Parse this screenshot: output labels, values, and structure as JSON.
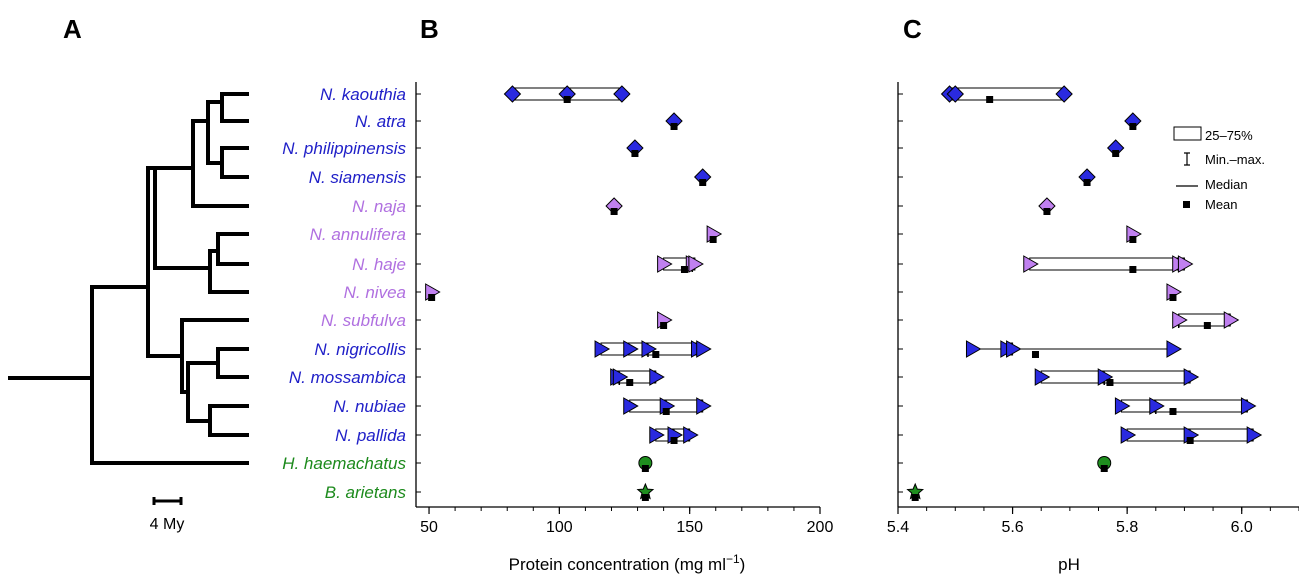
{
  "panels": {
    "A": "A",
    "B": "B",
    "C": "C"
  },
  "tree": {
    "scale_label": "4 My"
  },
  "legend": {
    "box": "25–75%",
    "whisker": "Min.–max.",
    "median": "Median",
    "mean": "Mean"
  },
  "colors": {
    "blue_group": "#2020c8",
    "lavender_group": "#b070e0",
    "green_group": "#1c8a1c",
    "blue_marker": "#2a2ae0",
    "lavender_marker": "#c080f0",
    "green_marker": "#1f8f1f"
  },
  "species": [
    {
      "name": "N. kaouthia",
      "group": "blue",
      "marker": "diamond"
    },
    {
      "name": "N. atra",
      "group": "blue",
      "marker": "diamond"
    },
    {
      "name": "N. philippinensis",
      "group": "blue",
      "marker": "diamond"
    },
    {
      "name": "N. siamensis",
      "group": "blue",
      "marker": "diamond"
    },
    {
      "name": "N. naja",
      "group": "lavender",
      "marker": "diamond"
    },
    {
      "name": "N. annulifera",
      "group": "lavender",
      "marker": "triangle-right"
    },
    {
      "name": "N. haje",
      "group": "lavender",
      "marker": "triangle-right"
    },
    {
      "name": "N. nivea",
      "group": "lavender",
      "marker": "triangle-right"
    },
    {
      "name": "N. subfulva",
      "group": "lavender",
      "marker": "triangle-right"
    },
    {
      "name": "N. nigricollis",
      "group": "blue",
      "marker": "triangle-right"
    },
    {
      "name": "N. mossambica",
      "group": "blue",
      "marker": "triangle-right"
    },
    {
      "name": "N. nubiae",
      "group": "blue",
      "marker": "triangle-right"
    },
    {
      "name": "N. pallida",
      "group": "blue",
      "marker": "triangle-right"
    },
    {
      "name": "H. haemachatus",
      "group": "green",
      "marker": "circle"
    },
    {
      "name": "B. arietans",
      "group": "green",
      "marker": "star"
    }
  ],
  "chart_data": [
    {
      "type": "box",
      "panel": "B",
      "xlabel": "Protein concentration (mg ml−1)",
      "xlim": [
        45,
        200
      ],
      "xticks": [
        50,
        100,
        150,
        200
      ],
      "rows": [
        {
          "points": [
            82,
            103,
            124
          ],
          "box": [
            82,
            124
          ],
          "median": 103,
          "mean": 103
        },
        {
          "points": [
            144
          ],
          "box": null,
          "median": 144,
          "mean": 144
        },
        {
          "points": [
            129
          ],
          "box": null,
          "median": 129,
          "mean": 129
        },
        {
          "points": [
            155
          ],
          "box": null,
          "median": 155,
          "mean": 155
        },
        {
          "points": [
            121
          ],
          "box": null,
          "median": 121,
          "mean": 121
        },
        {
          "points": [
            159
          ],
          "box": null,
          "median": 159,
          "mean": 159
        },
        {
          "points": [
            140,
            151,
            152
          ],
          "box": [
            140,
            152
          ],
          "median": 151,
          "mean": 148
        },
        {
          "points": [
            51
          ],
          "box": null,
          "median": 51,
          "mean": 51
        },
        {
          "points": [
            140
          ],
          "box": null,
          "median": 140,
          "mean": 140
        },
        {
          "points": [
            116,
            127,
            134,
            153,
            155
          ],
          "box": [
            116,
            154
          ],
          "median": 134,
          "mean": 137
        },
        {
          "points": [
            122,
            123,
            137
          ],
          "box": [
            122,
            137
          ],
          "median": 123,
          "mean": 127
        },
        {
          "points": [
            127,
            141,
            155
          ],
          "box": [
            127,
            155
          ],
          "median": 141,
          "mean": 141
        },
        {
          "points": [
            137,
            144,
            150
          ],
          "box": [
            137,
            150
          ],
          "median": 144,
          "mean": 144
        },
        {
          "points": [
            133
          ],
          "box": null,
          "median": 133,
          "mean": 133
        },
        {
          "points": [
            133
          ],
          "box": null,
          "median": 133,
          "mean": 133
        }
      ]
    },
    {
      "type": "box",
      "panel": "C",
      "xlabel": "pH",
      "xlim": [
        5.4,
        6.1
      ],
      "xticks": [
        5.4,
        5.6,
        5.8,
        6.0
      ],
      "xtick_labels": [
        "5.4",
        "5.6",
        "5.8",
        "6.0"
      ],
      "rows": [
        {
          "points": [
            5.49,
            5.5,
            5.69
          ],
          "box": [
            5.49,
            5.69
          ],
          "median": 5.5,
          "mean": 5.56
        },
        {
          "points": [
            5.81
          ],
          "box": null,
          "median": 5.81,
          "mean": 5.81
        },
        {
          "points": [
            5.78
          ],
          "box": null,
          "median": 5.78,
          "mean": 5.78
        },
        {
          "points": [
            5.73
          ],
          "box": null,
          "median": 5.73,
          "mean": 5.73
        },
        {
          "points": [
            5.66
          ],
          "box": null,
          "median": 5.66,
          "mean": 5.66
        },
        {
          "points": [
            5.81
          ],
          "box": null,
          "median": 5.81,
          "mean": 5.81
        },
        {
          "points": [
            5.63,
            5.89,
            5.9
          ],
          "box": [
            5.63,
            5.9
          ],
          "median": 5.89,
          "mean": 5.81
        },
        {
          "points": [
            5.88
          ],
          "box": null,
          "median": 5.88,
          "mean": 5.88
        },
        {
          "points": [
            5.89,
            5.98
          ],
          "box": [
            5.89,
            5.98
          ],
          "median": 5.89,
          "mean": 5.94
        },
        {
          "points": [
            5.53,
            5.59,
            5.6,
            5.88
          ],
          "box": [
            5.59,
            5.6
          ],
          "median": 5.59,
          "mean": 5.64
        },
        {
          "points": [
            5.65,
            5.76,
            5.91
          ],
          "box": [
            5.65,
            5.91
          ],
          "median": 5.76,
          "mean": 5.77
        },
        {
          "points": [
            5.79,
            5.85,
            6.01
          ],
          "box": [
            5.79,
            6.01
          ],
          "median": 5.85,
          "mean": 5.88
        },
        {
          "points": [
            5.8,
            5.91,
            6.02
          ],
          "box": [
            5.8,
            6.02
          ],
          "median": 5.91,
          "mean": 5.91
        },
        {
          "points": [
            5.76
          ],
          "box": null,
          "median": 5.76,
          "mean": 5.76
        },
        {
          "points": [
            5.43
          ],
          "box": null,
          "median": 5.43,
          "mean": 5.43
        }
      ]
    }
  ]
}
